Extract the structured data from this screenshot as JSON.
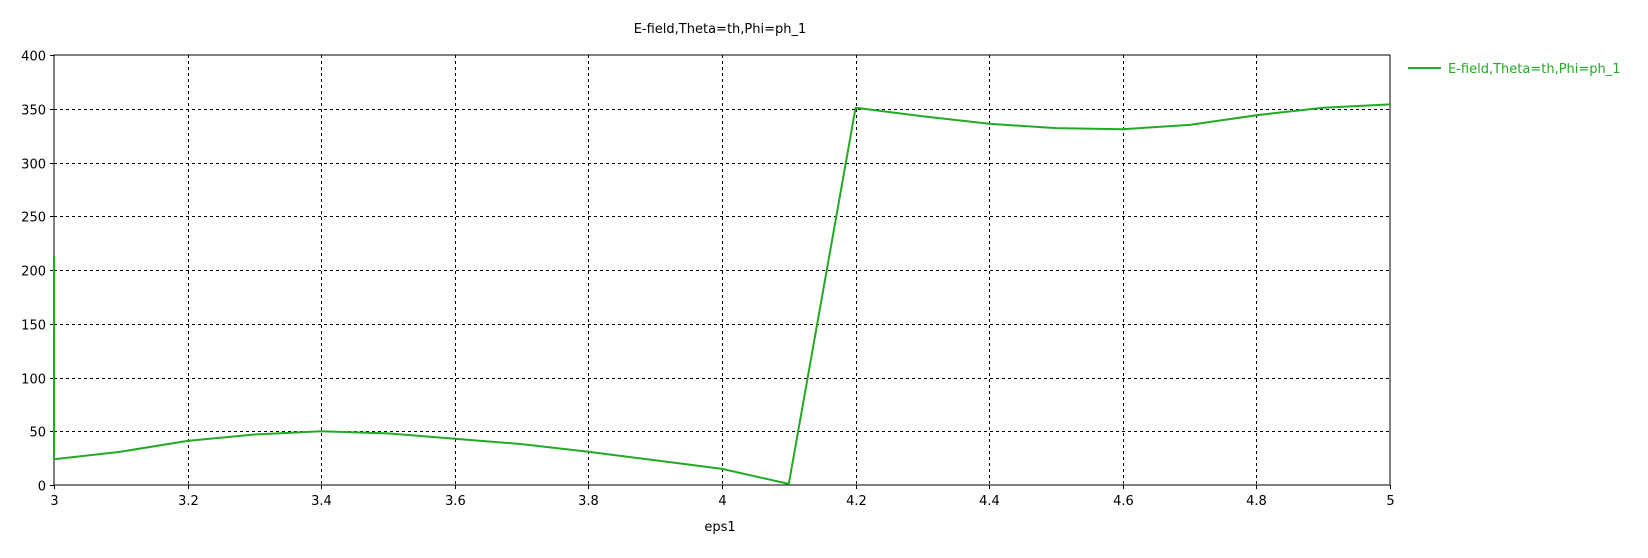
{
  "chart_data": {
    "type": "line",
    "title": "E-field,Theta=th,Phi=ph_1",
    "xlabel": "eps1",
    "ylabel": "",
    "xlim": [
      3,
      5
    ],
    "ylim": [
      0,
      400
    ],
    "xticks": [
      3,
      3.2,
      3.4,
      3.6,
      3.8,
      4,
      4.2,
      4.4,
      4.6,
      4.8,
      5
    ],
    "xtick_labels": [
      "3",
      "3.2",
      "3.4",
      "3.6",
      "3.8",
      "4",
      "4.2",
      "4.4",
      "4.6",
      "4.8",
      "5"
    ],
    "yticks": [
      0,
      50,
      100,
      150,
      200,
      250,
      300,
      350,
      400
    ],
    "ytick_labels": [
      "0",
      "50",
      "100",
      "150",
      "200",
      "250",
      "300",
      "350",
      "400"
    ],
    "grid": true,
    "legend_position": "top-right",
    "series": [
      {
        "name": "E-field,Theta=th,Phi=ph_1",
        "color": "#22aa22",
        "x": [
          3,
          3,
          3.1,
          3.2,
          3.3,
          3.4,
          3.5,
          3.6,
          3.7,
          3.8,
          3.9,
          4.0,
          4.1,
          4.2,
          4.3,
          4.4,
          4.5,
          4.6,
          4.7,
          4.8,
          4.9,
          5.0
        ],
        "y": [
          213,
          24,
          31,
          41,
          47,
          50,
          48,
          43,
          38,
          31,
          23,
          15,
          1,
          351,
          343,
          336,
          332,
          331,
          335,
          344,
          351,
          354
        ]
      }
    ]
  }
}
